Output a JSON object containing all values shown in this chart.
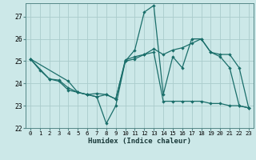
{
  "title": "",
  "xlabel": "Humidex (Indice chaleur)",
  "bg_color": "#cce8e8",
  "grid_color": "#aacccc",
  "line_color": "#1a6e6a",
  "xlim": [
    -0.5,
    23.5
  ],
  "ylim": [
    22.0,
    27.6
  ],
  "yticks": [
    22,
    23,
    24,
    25,
    26,
    27
  ],
  "xticks": [
    0,
    1,
    2,
    3,
    4,
    5,
    6,
    7,
    8,
    9,
    10,
    11,
    12,
    13,
    14,
    15,
    16,
    17,
    18,
    19,
    20,
    21,
    22,
    23
  ],
  "series1_x": [
    0,
    1,
    2,
    3,
    4,
    5,
    6,
    7,
    8,
    9,
    10,
    11,
    12,
    13,
    14,
    15,
    16,
    17,
    18,
    19,
    20,
    21,
    22,
    23
  ],
  "series1_y": [
    25.1,
    24.6,
    24.2,
    24.1,
    23.7,
    23.6,
    23.5,
    23.4,
    22.2,
    23.0,
    25.0,
    25.5,
    27.2,
    27.5,
    23.5,
    25.2,
    24.7,
    26.0,
    26.0,
    25.4,
    25.2,
    24.7,
    23.0,
    22.9
  ],
  "series2_x": [
    0,
    2,
    3,
    4,
    5,
    6,
    7,
    8,
    9,
    10,
    11,
    12,
    13,
    14,
    15,
    16,
    17,
    18,
    19,
    20,
    21,
    22,
    23
  ],
  "series2_y": [
    25.1,
    24.2,
    24.15,
    23.8,
    23.6,
    23.5,
    23.4,
    23.5,
    23.3,
    25.0,
    25.1,
    25.3,
    25.4,
    23.2,
    23.2,
    23.2,
    23.2,
    23.2,
    23.1,
    23.1,
    23.0,
    23.0,
    22.9
  ],
  "series3_x": [
    0,
    4,
    5,
    6,
    7,
    8,
    9,
    10,
    11,
    12,
    13,
    14,
    15,
    16,
    17,
    18,
    19,
    20,
    21,
    22,
    23
  ],
  "series3_y": [
    25.1,
    24.1,
    23.6,
    23.5,
    23.55,
    23.5,
    23.3,
    25.05,
    25.2,
    25.3,
    25.55,
    25.3,
    25.5,
    25.6,
    25.8,
    26.0,
    25.4,
    25.3,
    25.3,
    24.7,
    22.9
  ]
}
